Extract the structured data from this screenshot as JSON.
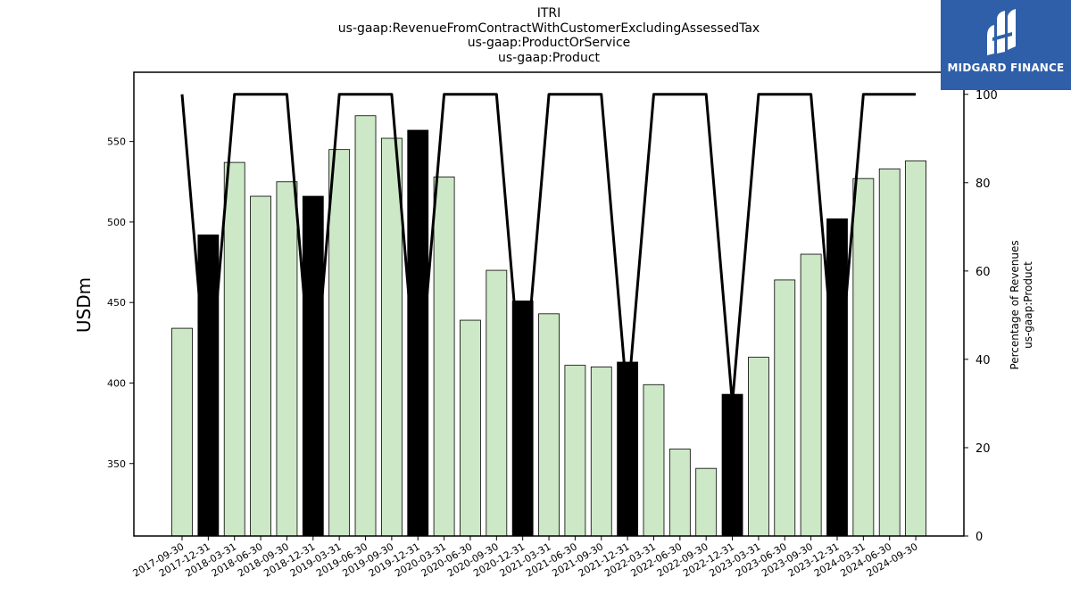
{
  "brand": {
    "name": "MIDGARD FINANCE",
    "bg_color": "#2f5fa8"
  },
  "colors": {
    "product_bar": "#cde8c6",
    "highlight_bar": "#000000",
    "line": "#000000"
  },
  "chart_data": {
    "type": "bar",
    "title_lines": [
      "ITRI",
      "us-gaap:RevenueFromContractWithCustomerExcludingAssessedTax",
      "us-gaap:ProductOrService",
      "us-gaap:Product"
    ],
    "xlabel": "",
    "ylabel": "USDm",
    "y2label_lines": [
      "Percentage of Revenues",
      "us-gaap:Product"
    ],
    "ylim": [
      305,
      593
    ],
    "yticks": [
      350,
      400,
      450,
      500,
      550
    ],
    "y2lim": [
      0,
      105
    ],
    "y2ticks": [
      0,
      20,
      40,
      60,
      80,
      100
    ],
    "grid": false,
    "categories": [
      "2017-09-30",
      "2017-12-31",
      "2018-03-31",
      "2018-06-30",
      "2018-09-30",
      "2018-12-31",
      "2019-03-31",
      "2019-06-30",
      "2019-09-30",
      "2019-12-31",
      "2020-03-31",
      "2020-06-30",
      "2020-09-30",
      "2020-12-31",
      "2021-03-31",
      "2021-06-30",
      "2021-09-30",
      "2021-12-31",
      "2022-03-31",
      "2022-06-30",
      "2022-09-30",
      "2022-12-31",
      "2023-03-31",
      "2023-06-30",
      "2023-09-30",
      "2023-12-31",
      "2024-03-31",
      "2024-06-30",
      "2024-09-30"
    ],
    "series": [
      {
        "values": [
          434,
          492,
          537,
          516,
          525,
          516,
          545,
          566,
          552,
          557,
          528,
          439,
          470,
          451,
          443,
          411,
          410,
          413,
          399,
          359,
          347,
          393,
          416,
          464,
          480,
          502,
          527,
          533,
          538
        ],
        "highlight": [
          false,
          true,
          false,
          false,
          false,
          true,
          false,
          false,
          false,
          true,
          false,
          false,
          false,
          true,
          false,
          false,
          false,
          true,
          false,
          false,
          false,
          true,
          false,
          false,
          false,
          true,
          false,
          false,
          false
        ]
      },
      {
        "type": "line",
        "axis": "right",
        "values": [
          100,
          30,
          100,
          100,
          100,
          30,
          100,
          100,
          100,
          30,
          100,
          100,
          100,
          30,
          100,
          100,
          100,
          30,
          100,
          100,
          100,
          30,
          100,
          100,
          100,
          30,
          100,
          100,
          100
        ]
      }
    ]
  }
}
